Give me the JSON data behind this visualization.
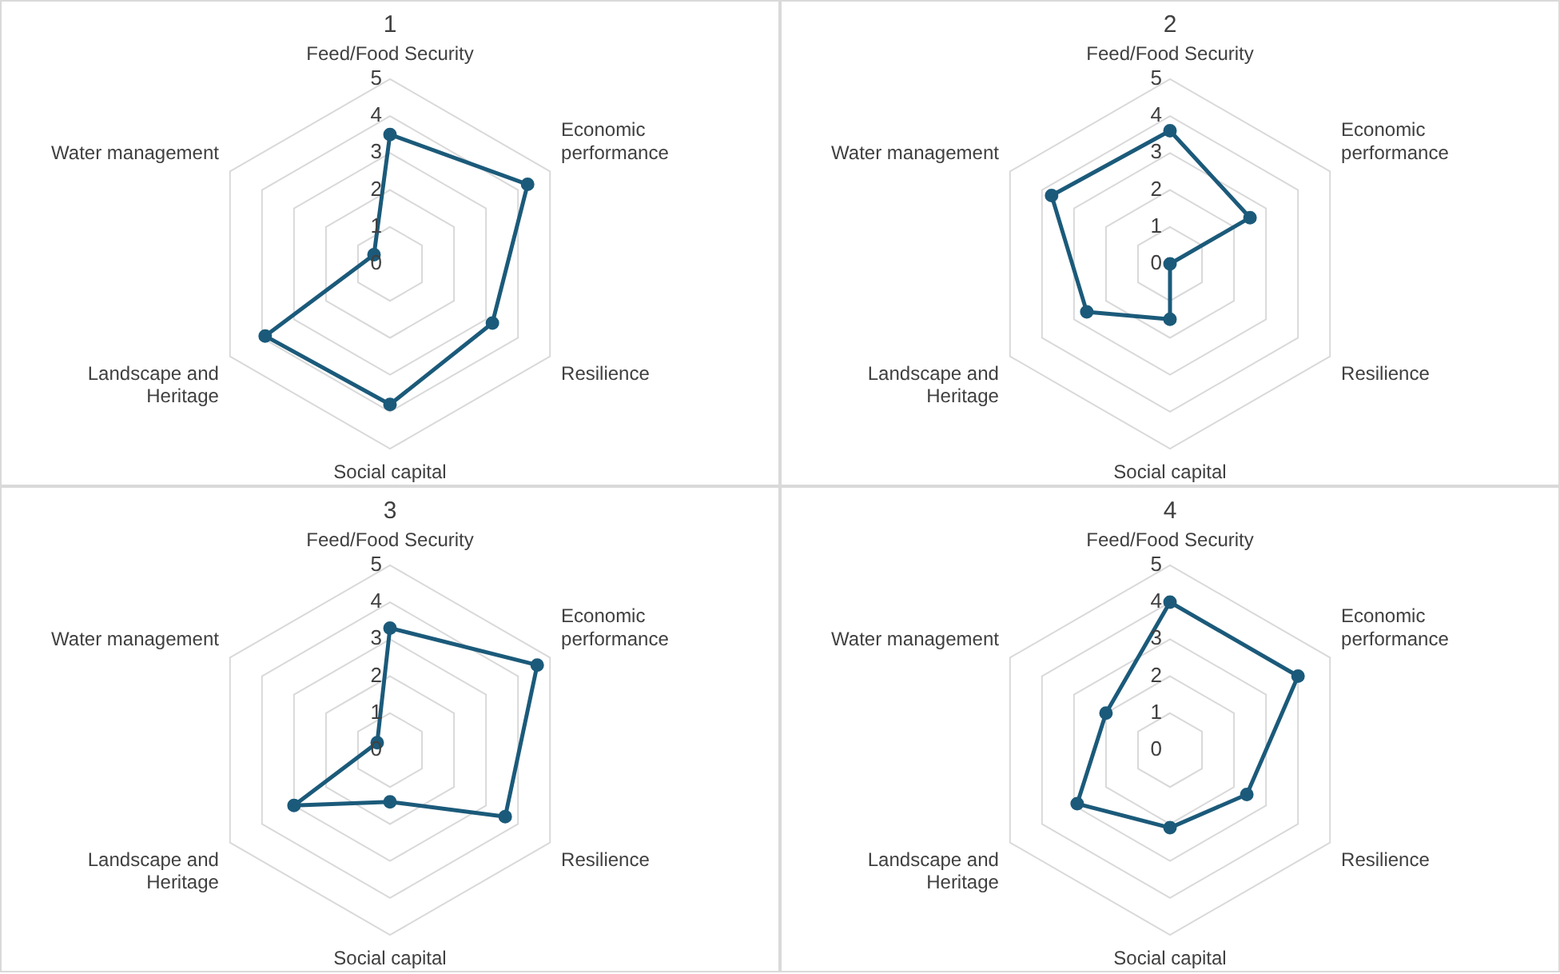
{
  "chart_data": [
    {
      "type": "radar",
      "title": "1",
      "categories": [
        "Feed/Food Security",
        "Economic performance",
        "Resilience",
        "Social capital",
        "Landscape and Heritage",
        "Water management"
      ],
      "series": [
        {
          "color": "#1b5a7a",
          "values": [
            3.5,
            4.3,
            3.2,
            3.8,
            3.9,
            0.5
          ]
        }
      ],
      "ylim": [
        0,
        5
      ],
      "yticks": [
        0,
        1,
        2,
        3,
        4,
        5
      ],
      "grid": true,
      "marker": "circle",
      "legend": false
    },
    {
      "type": "radar",
      "title": "2",
      "categories": [
        "Feed/Food Security",
        "Economic performance",
        "Resilience",
        "Social capital",
        "Landscape and Heritage",
        "Water management"
      ],
      "series": [
        {
          "color": "#1b5a7a",
          "values": [
            3.6,
            2.5,
            0,
            1.5,
            2.6,
            3.7
          ]
        }
      ],
      "ylim": [
        0,
        5
      ],
      "yticks": [
        0,
        1,
        2,
        3,
        4,
        5
      ],
      "grid": true,
      "marker": "circle",
      "legend": false
    },
    {
      "type": "radar",
      "title": "3",
      "categories": [
        "Feed/Food Security",
        "Economic performance",
        "Resilience",
        "Social capital",
        "Landscape and Heritage",
        "Water management"
      ],
      "series": [
        {
          "color": "#1b5a7a",
          "values": [
            3.3,
            4.6,
            3.6,
            1.4,
            3.0,
            0.4
          ]
        }
      ],
      "ylim": [
        0,
        5
      ],
      "yticks": [
        0,
        1,
        2,
        3,
        4,
        5
      ],
      "grid": true,
      "marker": "circle",
      "legend": false
    },
    {
      "type": "radar",
      "title": "4",
      "categories": [
        "Feed/Food Security",
        "Economic performance",
        "Resilience",
        "Social capital",
        "Landscape and Heritage",
        "Water management"
      ],
      "series": [
        {
          "color": "#1b5a7a",
          "values": [
            4.0,
            4.0,
            2.4,
            2.1,
            2.9,
            2.0
          ]
        }
      ],
      "ylim": [
        0,
        5
      ],
      "yticks": [
        0,
        1,
        2,
        3,
        4,
        5
      ],
      "grid": true,
      "marker": "circle",
      "legend": false
    }
  ]
}
